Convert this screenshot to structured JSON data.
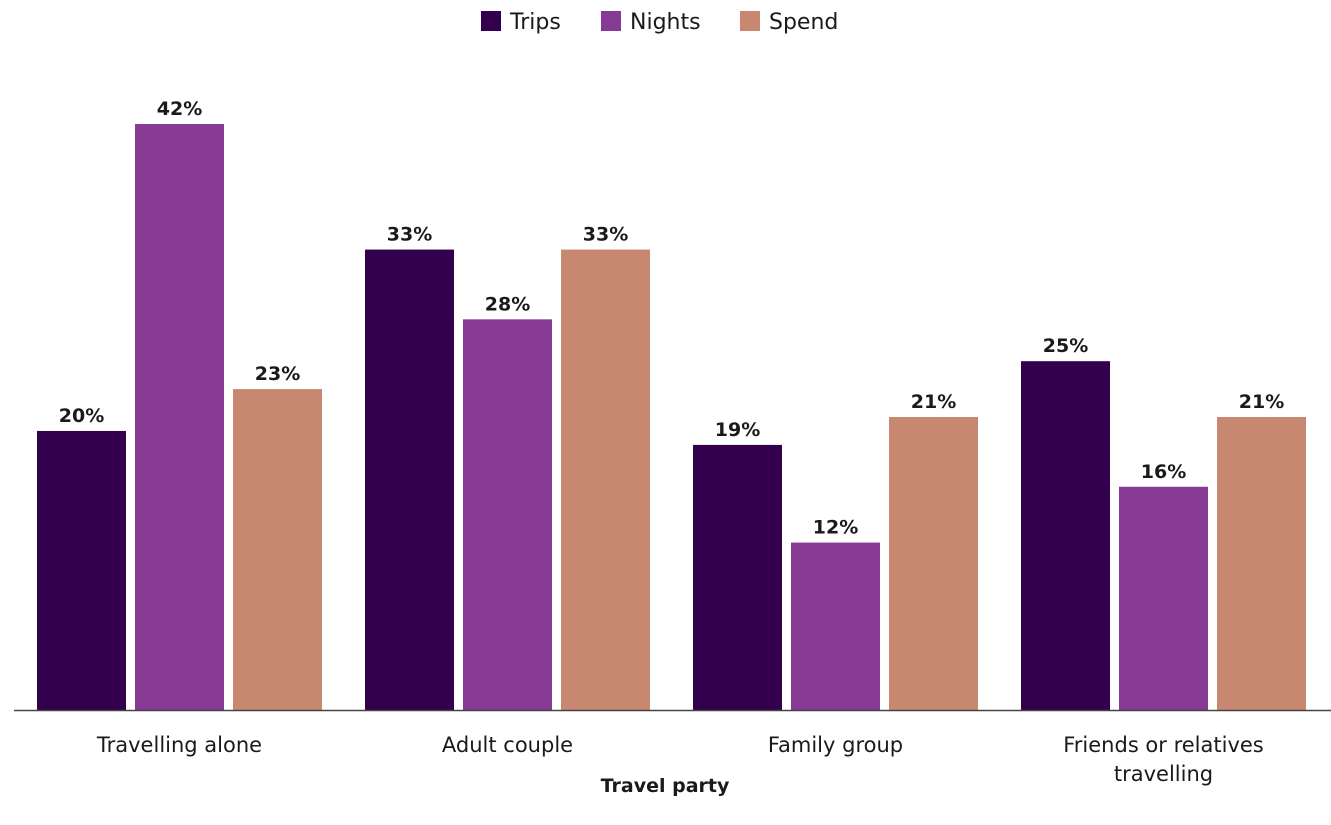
{
  "chart_data": {
    "type": "bar",
    "xlabel": "Travel party",
    "ylabel": "",
    "ylim": [
      0,
      42
    ],
    "grid": false,
    "legend_placement": "top-center",
    "categories": [
      [
        "Travelling alone"
      ],
      [
        "Adult couple"
      ],
      [
        "Family group"
      ],
      [
        "Friends or relatives",
        "travelling"
      ]
    ],
    "series": [
      {
        "name": "Trips",
        "color": "#33004d",
        "values": [
          20,
          33,
          19,
          25
        ],
        "labels": [
          "20%",
          "33%",
          "19%",
          "25%"
        ]
      },
      {
        "name": "Nights",
        "color": "#873b94",
        "values": [
          42,
          28,
          12,
          16
        ],
        "labels": [
          "42%",
          "28%",
          "12%",
          "16%"
        ]
      },
      {
        "name": "Spend",
        "color": "#c78770",
        "values": [
          23,
          33,
          21,
          21
        ],
        "labels": [
          "23%",
          "33%",
          "21%",
          "21%"
        ]
      }
    ]
  }
}
